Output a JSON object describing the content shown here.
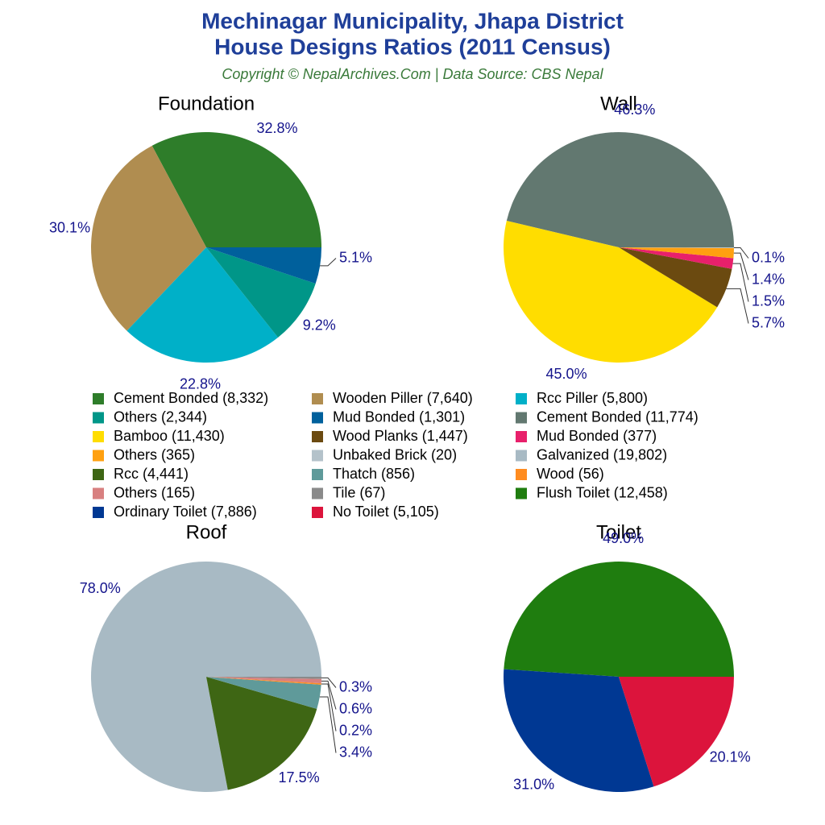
{
  "title": [
    "Mechinagar Municipality, Jhapa District",
    "House Designs Ratios (2011 Census)"
  ],
  "subtitle": "Copyright © NepalArchives.Com | Data Source: CBS Nepal",
  "chart_data": [
    {
      "type": "pie",
      "title": "Foundation",
      "categories": [
        "Cement Bonded (8,332)",
        "Wooden Piller (7,640)",
        "Rcc Piller (5,800)",
        "Others (2,344)",
        "Mud Bonded (1,301)"
      ],
      "values": [
        32.8,
        30.1,
        22.8,
        9.2,
        5.1
      ],
      "value_labels": [
        "32.8%",
        "30.1%",
        "22.8%",
        "9.2%",
        "5.1%"
      ],
      "colors": [
        "#2e7d2a",
        "#b08d50",
        "#00b0c8",
        "#009688",
        "#00609c"
      ]
    },
    {
      "type": "pie",
      "title": "Wall",
      "categories": [
        "Cement Bonded (11,774)",
        "Bamboo (11,430)",
        "Wood Planks (1,447)",
        "Mud Bonded (377)",
        "Others (365)",
        "Unbaked Brick (20)"
      ],
      "values": [
        46.3,
        45.0,
        5.7,
        1.5,
        1.4,
        0.1
      ],
      "value_labels": [
        "46.3%",
        "45.0%",
        "5.7%",
        "1.5%",
        "1.4%",
        "0.1%"
      ],
      "colors": [
        "#627870",
        "#ffdd00",
        "#6b4a10",
        "#e8206b",
        "#ffa010",
        "#b4c2ca"
      ]
    },
    {
      "type": "pie",
      "title": "Roof",
      "categories": [
        "Galvanized (19,802)",
        "Rcc (4,441)",
        "Thatch (856)",
        "Wood (56)",
        "Others (165)",
        "Tile (67)"
      ],
      "values": [
        78.0,
        17.5,
        3.4,
        0.2,
        0.6,
        0.3
      ],
      "value_labels": [
        "78.0%",
        "17.5%",
        "3.4%",
        "0.2%",
        "0.6%",
        "0.3%"
      ],
      "colors": [
        "#a8bac4",
        "#3e6614",
        "#5f9a9a",
        "#ff8c20",
        "#d88080",
        "#8a8a8a"
      ]
    },
    {
      "type": "pie",
      "title": "Toilet",
      "categories": [
        "Flush Toilet (12,458)",
        "Ordinary Toilet (7,886)",
        "No Toilet (5,105)"
      ],
      "values": [
        49.0,
        31.0,
        20.1
      ],
      "value_labels": [
        "49.0%",
        "31.0%",
        "20.1%"
      ],
      "colors": [
        "#1f7d0f",
        "#003893",
        "#dc143c"
      ]
    }
  ]
}
